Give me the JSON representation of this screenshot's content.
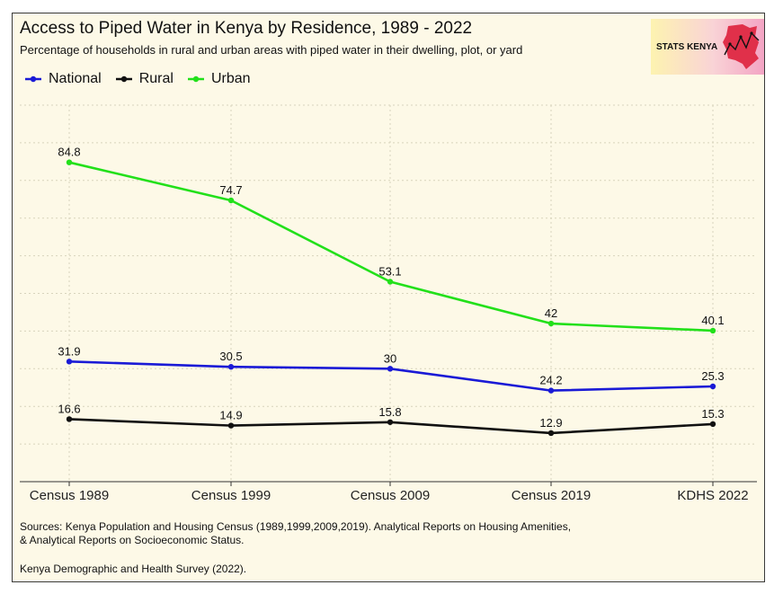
{
  "chart_data": {
    "type": "line",
    "title": "Access to Piped Water in Kenya by Residence, 1989 - 2022",
    "subtitle": "Percentage of households in rural and urban areas with piped water in their dwelling, plot, or yard",
    "categories": [
      "Census 1989",
      "Census 1999",
      "Census 2009",
      "Census 2019",
      "KDHS 2022"
    ],
    "series": [
      {
        "name": "National",
        "color": "#1a1ad6",
        "values": [
          31.9,
          30.5,
          30,
          24.2,
          25.3
        ]
      },
      {
        "name": "Rural",
        "color": "#111111",
        "values": [
          16.6,
          14.9,
          15.8,
          12.9,
          15.3
        ]
      },
      {
        "name": "Urban",
        "color": "#22e01a",
        "values": [
          84.8,
          74.7,
          53.1,
          42,
          40.1
        ]
      }
    ],
    "ylim": [
      0,
      100
    ],
    "xlabel": "",
    "ylabel": "",
    "grid": true,
    "legend": "top-left"
  },
  "branding": {
    "logo_text": "STATS KENYA"
  },
  "footer": {
    "sources_line1": "Sources: Kenya Population and Housing Census (1989,1999,2009,2019). Analytical Reports on Housing Amenities,",
    "sources_line2": "& Analytical Reports on Socioeconomic Status.",
    "survey": "Kenya Demographic and Health Survey (2022)."
  }
}
